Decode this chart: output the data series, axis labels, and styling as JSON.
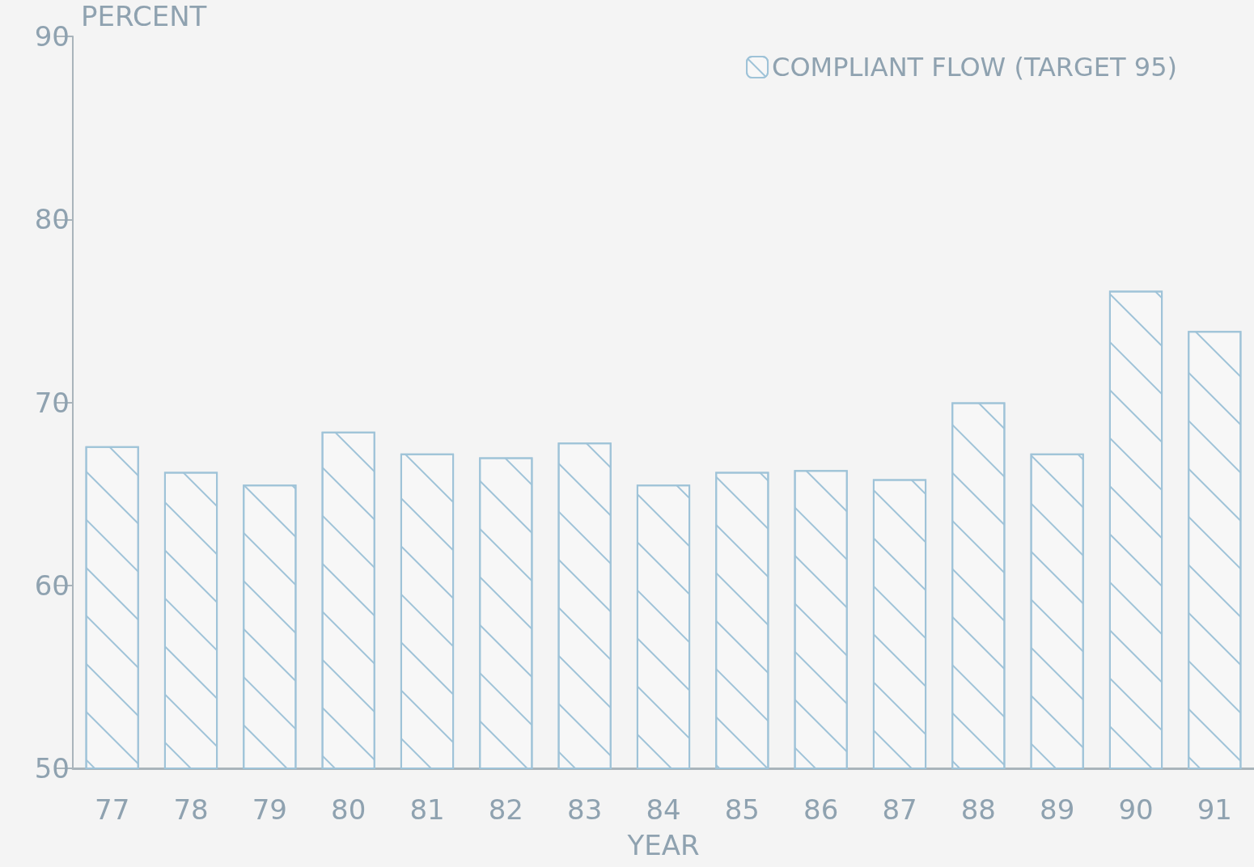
{
  "chart_data": {
    "type": "bar",
    "ylabel": "PERCENT",
    "xlabel": "YEAR",
    "categories": [
      "77",
      "78",
      "79",
      "80",
      "81",
      "82",
      "83",
      "84",
      "85",
      "86",
      "87",
      "88",
      "89",
      "90",
      "91"
    ],
    "series": [
      {
        "name": "COMPLIANT FLOW (TARGET 95)",
        "color": "#9fc3d8",
        "values": [
          67.6,
          66.2,
          65.5,
          68.4,
          67.2,
          67.0,
          67.8,
          65.5,
          66.2,
          66.3,
          65.8,
          70.0,
          67.2,
          76.1,
          73.9
        ]
      }
    ],
    "ylim": [
      50,
      90
    ],
    "yticks": [
      50,
      60,
      70,
      80,
      90
    ],
    "grid": false,
    "legend": "top right"
  }
}
